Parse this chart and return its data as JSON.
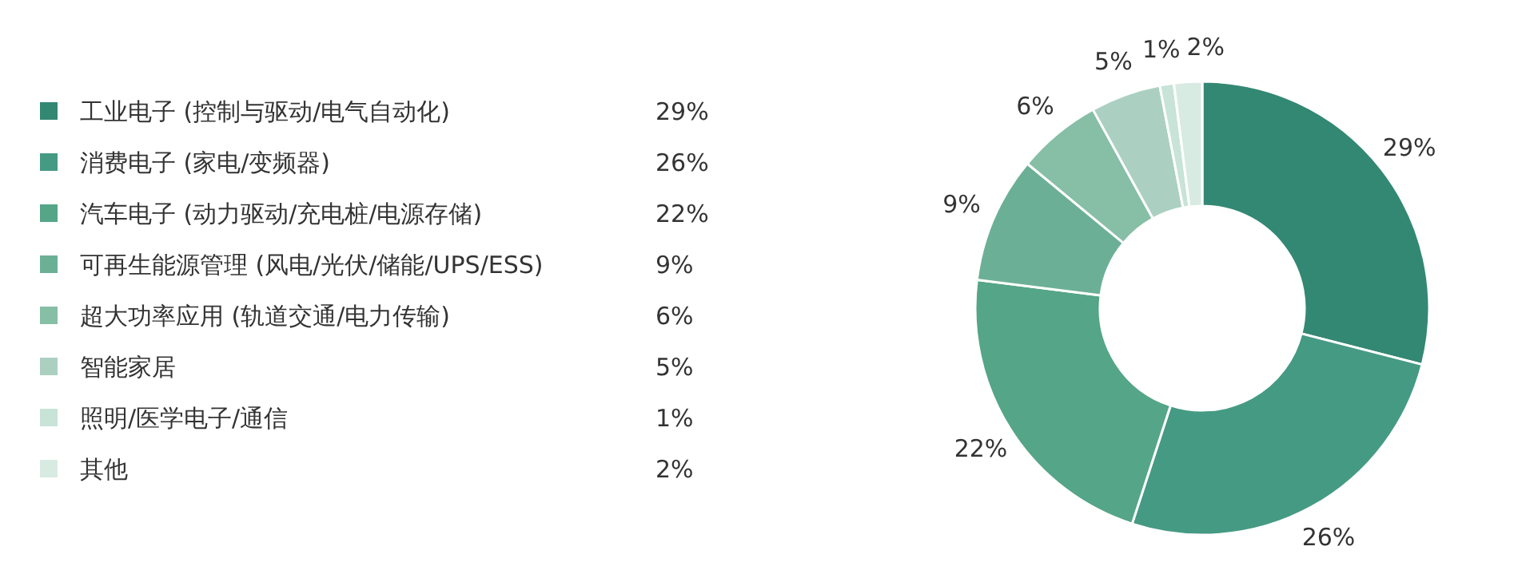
{
  "chart_data": {
    "type": "donut",
    "legend": "left",
    "categories": [
      "工业电子 (控制与驱动/电气自动化)",
      "消费电子 (家电/变频器)",
      "汽车电子 (动力驱动/充电桩/电源存储)",
      "可再生能源管理 (风电/光伏/储能/UPS/ESS)",
      "超大功率应用 (轨道交通/电力传输)",
      "智能家居",
      "照明/医学电子/通信",
      "其他"
    ],
    "values": [
      29,
      26,
      22,
      9,
      6,
      5,
      1,
      2
    ],
    "value_labels": [
      "29%",
      "26%",
      "22%",
      "9%",
      "6%",
      "5%",
      "1%",
      "2%"
    ],
    "colors": [
      "#338873",
      "#459a83",
      "#55a588",
      "#6bb096",
      "#86bea6",
      "#abd0c2",
      "#c8e3d8",
      "#d8ebe3"
    ]
  }
}
